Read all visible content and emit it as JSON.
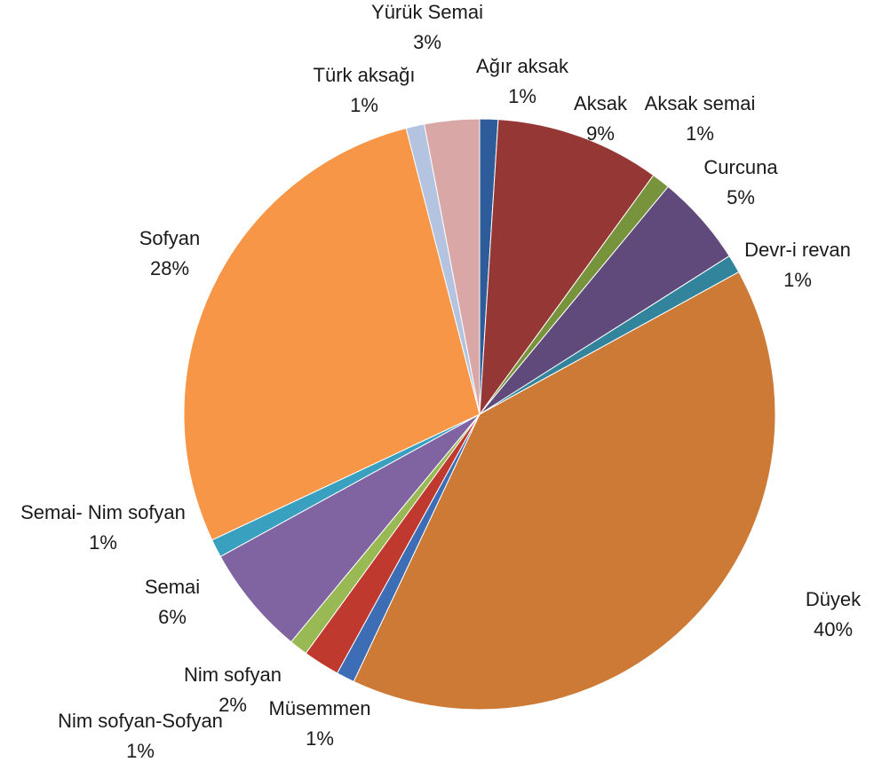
{
  "chart_data": {
    "type": "pie",
    "title": "",
    "slices": [
      {
        "label": "Ağır aksak",
        "value": 1,
        "pct_label": "1%",
        "color": "#2E5C9A"
      },
      {
        "label": "Aksak",
        "value": 9,
        "pct_label": "9%",
        "color": "#953735"
      },
      {
        "label": "Aksak semai",
        "value": 1,
        "pct_label": "1%",
        "color": "#77933C"
      },
      {
        "label": "Curcuna",
        "value": 5,
        "pct_label": "5%",
        "color": "#604A7B"
      },
      {
        "label": "Devr-i revan",
        "value": 1,
        "pct_label": "1%",
        "color": "#31849B"
      },
      {
        "label": "Düyek",
        "value": 40,
        "pct_label": "40%",
        "color": "#CC7A36"
      },
      {
        "label": "Müsemmen",
        "value": 1,
        "pct_label": "1%",
        "color": "#3C6DB5"
      },
      {
        "label": "Nim sofyan",
        "value": 2,
        "pct_label": "2%",
        "color": "#C0392F"
      },
      {
        "label": "Nim sofyan-Sofyan",
        "value": 1,
        "pct_label": "1%",
        "color": "#98B954"
      },
      {
        "label": "Semai",
        "value": 6,
        "pct_label": "6%",
        "color": "#8064A2"
      },
      {
        "label": "Semai- Nim sofyan",
        "value": 1,
        "pct_label": "1%",
        "color": "#3AA0C0"
      },
      {
        "label": "Sofyan",
        "value": 28,
        "pct_label": "28%",
        "color": "#F79646"
      },
      {
        "label": "Türk aksağı",
        "value": 1,
        "pct_label": "1%",
        "color": "#B3C3E0"
      },
      {
        "label": "Yürük Semai",
        "value": 3,
        "pct_label": "3%",
        "color": "#D9A7A6"
      }
    ]
  }
}
